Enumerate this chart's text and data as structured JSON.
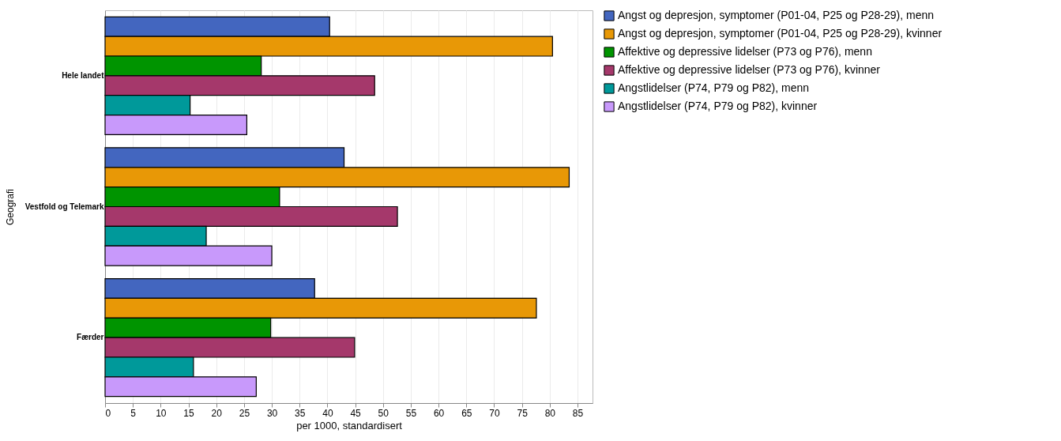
{
  "chart_data": {
    "type": "bar",
    "orientation": "horizontal",
    "xlabel": "per 1000, standardisert",
    "ylabel": "Geografi",
    "categories": [
      "Hele landet",
      "Vestfold og Telemark",
      "Færder"
    ],
    "series": [
      {
        "name": "Angst og depresjon, symptomer (P01-04, P25 og P28-29), menn",
        "color": "#4366bf",
        "values": [
          40.4,
          43.0,
          37.7
        ]
      },
      {
        "name": "Angst og depresjon, symptomer (P01-04, P25 og P28-29), kvinner",
        "color": "#e89806",
        "values": [
          80.5,
          83.5,
          77.6
        ]
      },
      {
        "name": "Affektive og depressive lidelser (P73 og P76), menn",
        "color": "#009400",
        "values": [
          28.1,
          31.4,
          29.8
        ]
      },
      {
        "name": "Affektive og depressive lidelser (P73 og P76), kvinner",
        "color": "#a5386b",
        "values": [
          48.5,
          52.6,
          44.9
        ]
      },
      {
        "name": "Angstlidelser (P74, P79 og P82), menn",
        "color": "#00999a",
        "values": [
          15.3,
          18.2,
          15.9
        ]
      },
      {
        "name": "Angstlidelser (P74, P79 og P82), kvinner",
        "color": "#c899fb",
        "values": [
          25.5,
          30.0,
          27.2
        ]
      }
    ],
    "xlim": [
      0,
      87.7
    ],
    "xticks": [
      0,
      5,
      10,
      15,
      20,
      25,
      30,
      35,
      40,
      45,
      50,
      55,
      60,
      65,
      70,
      75,
      80,
      85
    ],
    "grid": "x",
    "legend": "right"
  }
}
